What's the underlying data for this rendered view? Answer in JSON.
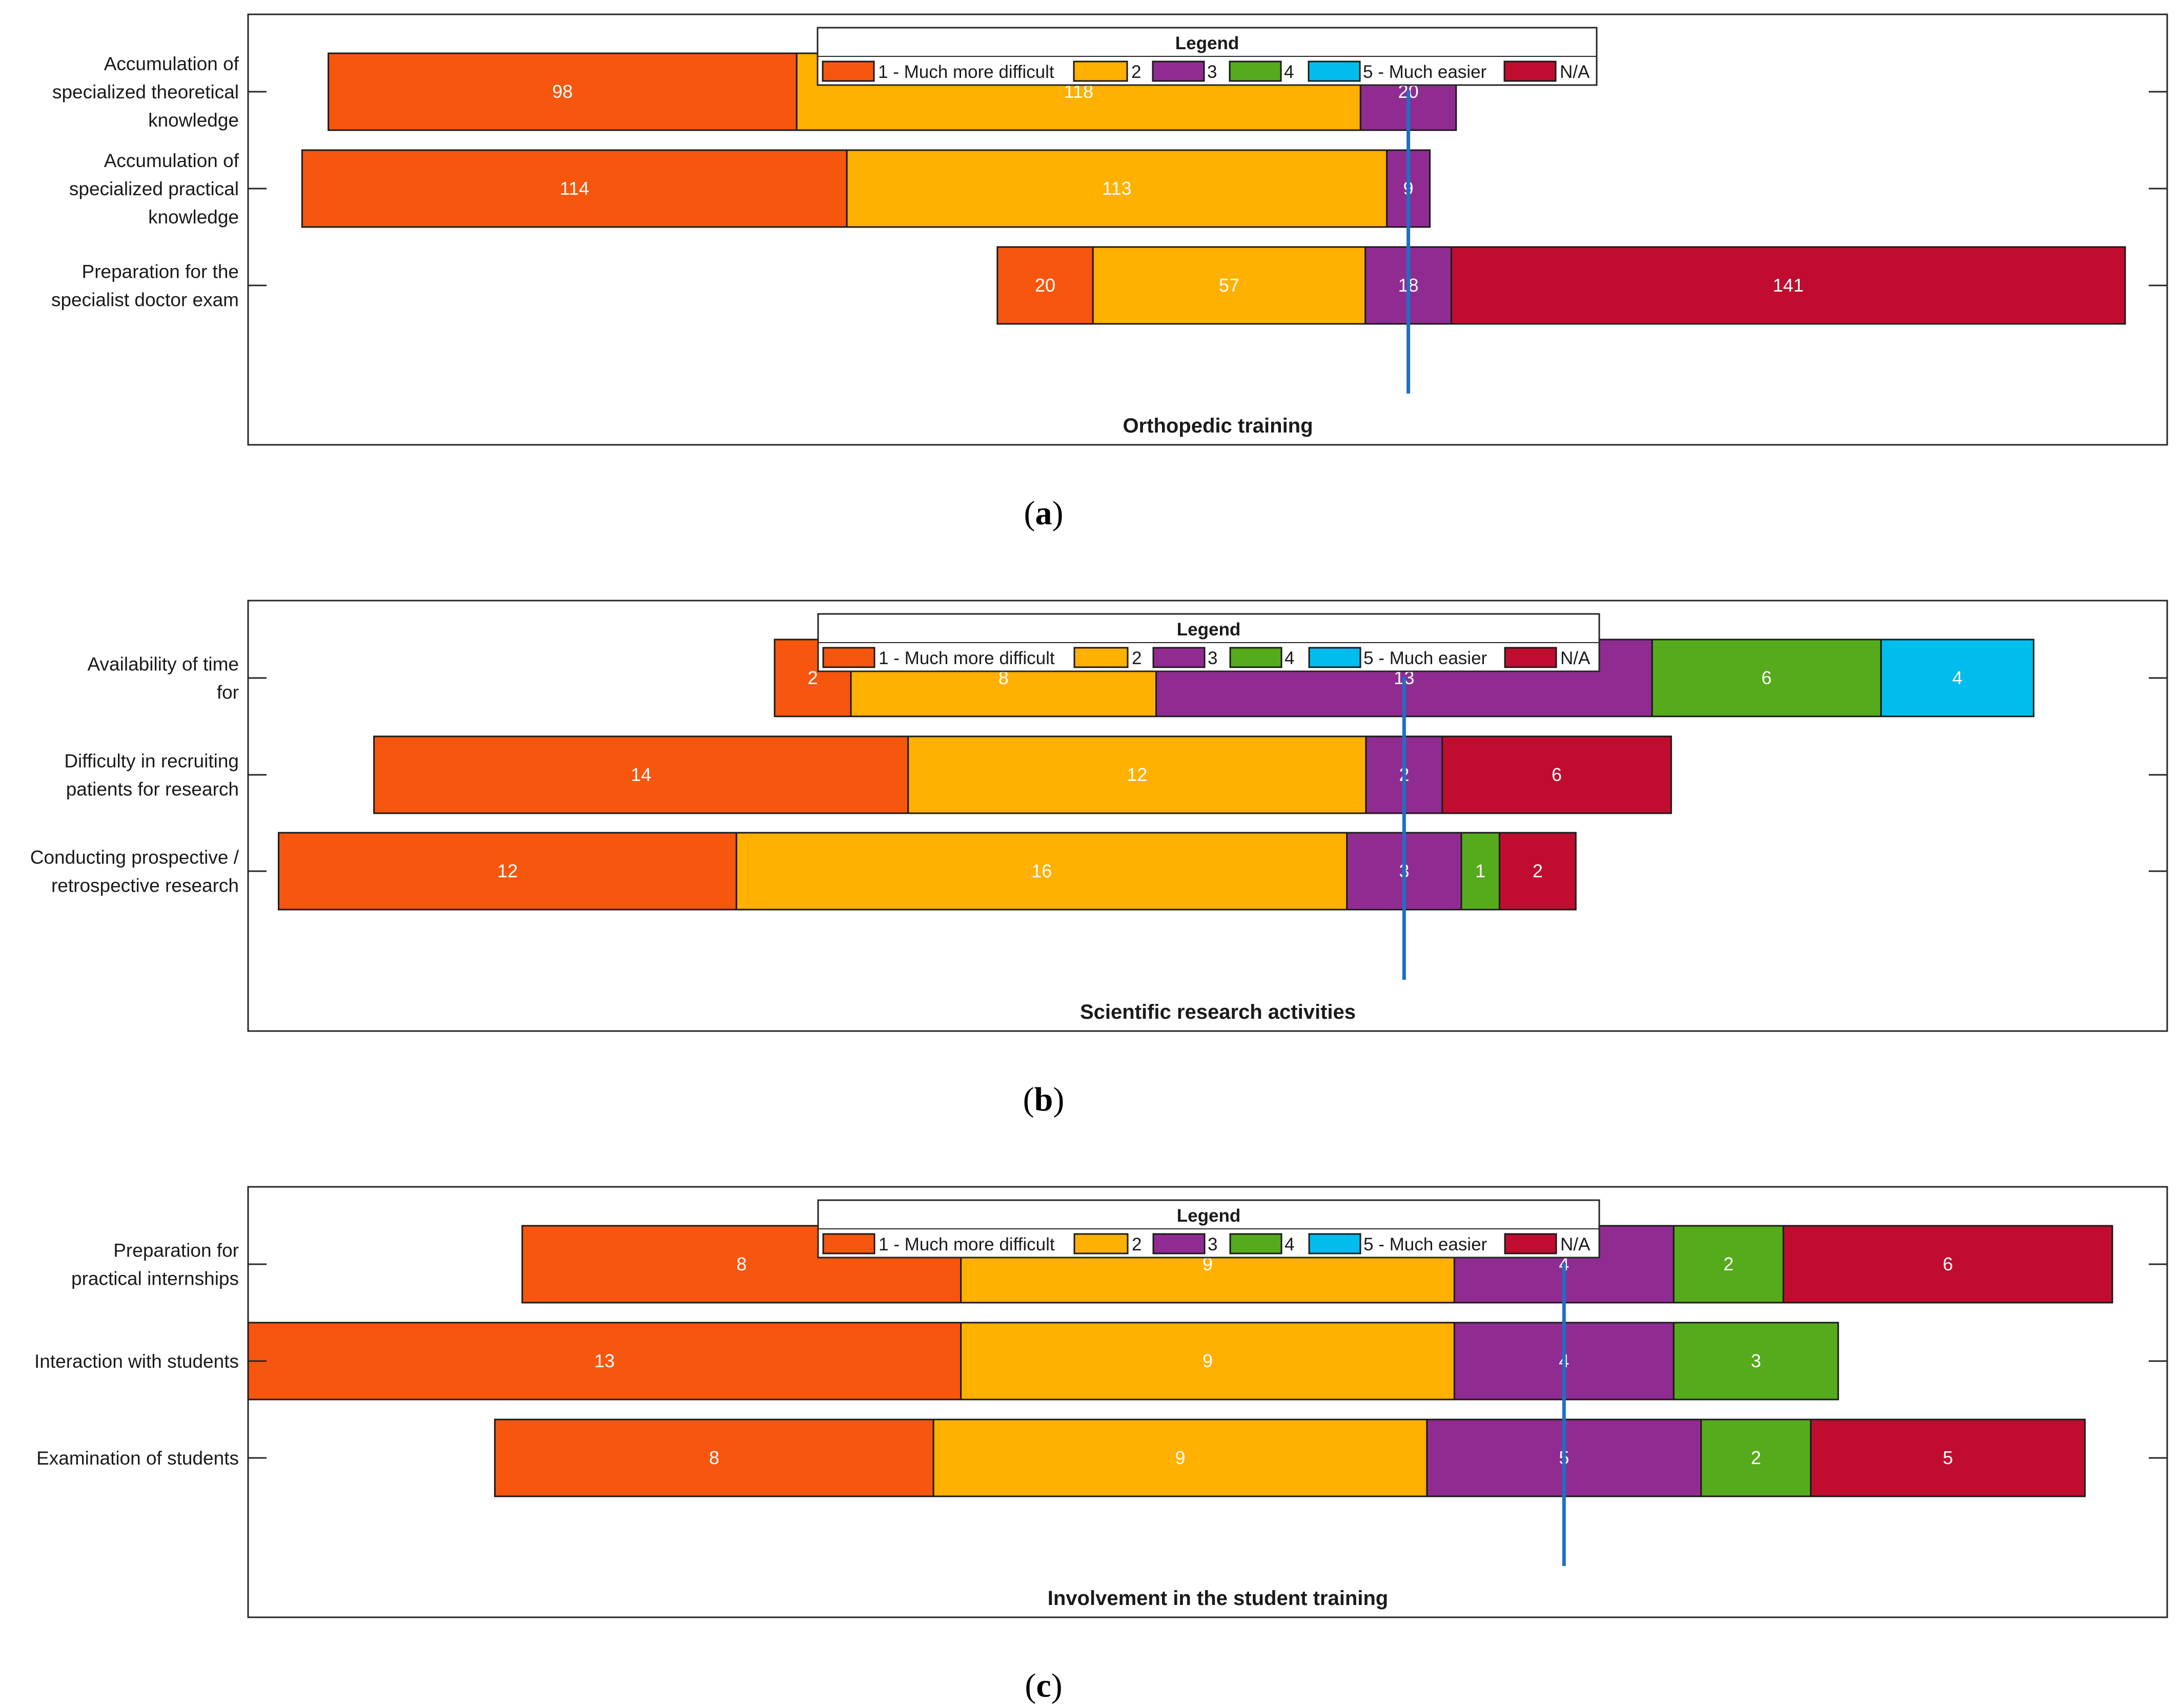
{
  "legend": {
    "title": "Legend",
    "labels": [
      "1 - Much more difficult",
      "2",
      "3",
      "4",
      "5 - Much easier",
      "N/A"
    ],
    "colors": [
      "#F7560E",
      "#FFB000",
      "#902C91",
      "#56AB1C",
      "#00BDEE",
      "#C00D2F"
    ]
  },
  "chart_data": [
    {
      "type": "bar",
      "orientation": "horizontal-diverging-stacked",
      "caption_letter": "a",
      "title": "Orthopedic training",
      "categories": [
        "Accumulation of specialized theoretical knowledge",
        "Accumulation of specialized practical knowledge",
        "Preparation for the specialist doctor exam"
      ],
      "label_lines": [
        [
          "Accumulation of",
          "specialized theoretical",
          "knowledge"
        ],
        [
          "Accumulation of",
          "specialized practical",
          "knowledge"
        ],
        [
          "Preparation for the",
          "specialist doctor exam"
        ]
      ],
      "series": [
        {
          "name": "1 - Much more difficult",
          "values": [
            98,
            114,
            20
          ]
        },
        {
          "name": "2",
          "values": [
            118,
            113,
            57
          ]
        },
        {
          "name": "3",
          "values": [
            20,
            9,
            18
          ]
        },
        {
          "name": "4",
          "values": [
            0,
            0,
            0
          ]
        },
        {
          "name": "5 - Much easier",
          "values": [
            0,
            0,
            0
          ]
        },
        {
          "name": "N/A",
          "values": [
            0,
            0,
            141
          ]
        }
      ],
      "xlim": [
        -242.8,
        158.8
      ],
      "neutral_line": 0
    },
    {
      "type": "bar",
      "orientation": "horizontal-diverging-stacked",
      "caption_letter": "b",
      "title": "Scientific research activities",
      "categories": [
        "Availability of time for",
        "Difficulty in recruiting patients for research",
        "Conducting prospective / retrospective research"
      ],
      "label_lines": [
        [
          "Availability of time",
          "for"
        ],
        [
          "Difficulty in recruiting",
          "patients for research"
        ],
        [
          "Conducting prospective /",
          "retrospective research"
        ]
      ],
      "series": [
        {
          "name": "1 - Much more difficult",
          "values": [
            2,
            14,
            12
          ]
        },
        {
          "name": "2",
          "values": [
            8,
            12,
            16
          ]
        },
        {
          "name": "3",
          "values": [
            13,
            2,
            3
          ]
        },
        {
          "name": "4",
          "values": [
            6,
            0,
            1
          ]
        },
        {
          "name": "5 - Much easier",
          "values": [
            4,
            0,
            0
          ]
        },
        {
          "name": "N/A",
          "values": [
            0,
            6,
            2
          ]
        }
      ],
      "xlim": [
        -30.3,
        20.0
      ],
      "neutral_line": 0
    },
    {
      "type": "bar",
      "orientation": "horizontal-diverging-stacked",
      "caption_letter": "c",
      "title": "Involvement in the student training",
      "categories": [
        "Preparation for practical internships",
        "Interaction with students",
        "Examination of students"
      ],
      "label_lines": [
        [
          "Preparation for",
          "practical internships"
        ],
        [
          "Interaction with students"
        ],
        [
          "Examination of students"
        ]
      ],
      "series": [
        {
          "name": "1 - Much more difficult",
          "values": [
            8,
            13,
            8
          ]
        },
        {
          "name": "2",
          "values": [
            9,
            9,
            9
          ]
        },
        {
          "name": "3",
          "values": [
            4,
            4,
            5
          ]
        },
        {
          "name": "4",
          "values": [
            2,
            3,
            2
          ]
        },
        {
          "name": "5 - Much easier",
          "values": [
            0,
            0,
            0
          ]
        },
        {
          "name": "N/A",
          "values": [
            6,
            0,
            5
          ]
        }
      ],
      "xlim": [
        -24.0,
        11.0
      ],
      "neutral_line": 0
    }
  ]
}
